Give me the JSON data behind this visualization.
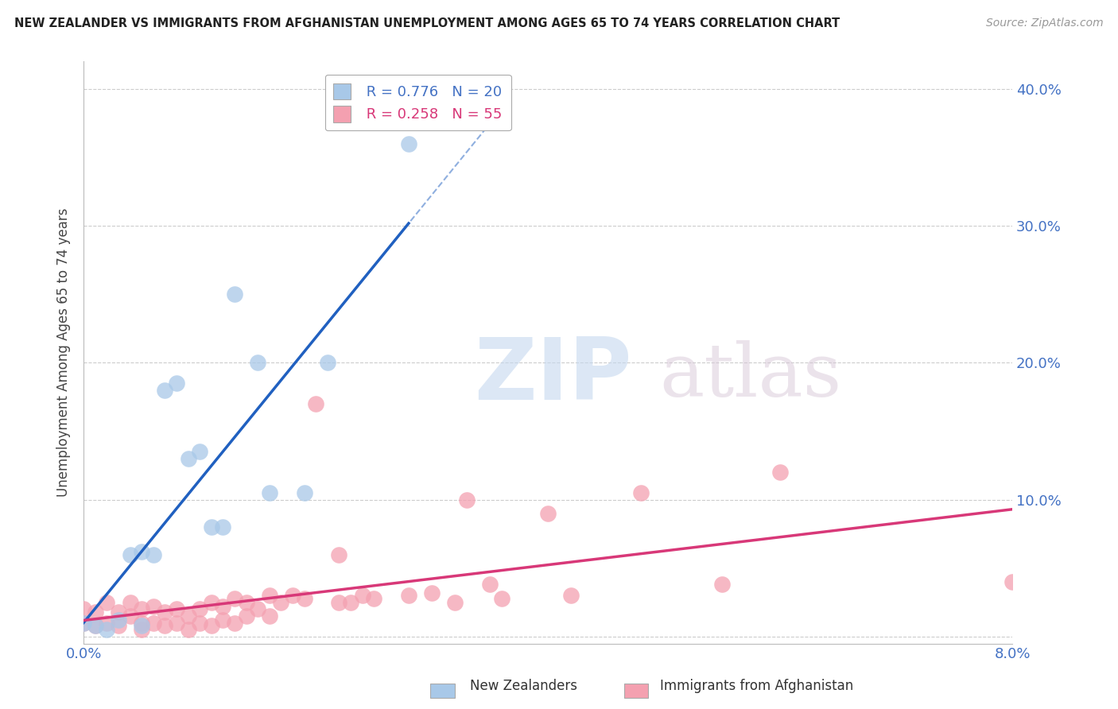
{
  "title": "NEW ZEALANDER VS IMMIGRANTS FROM AFGHANISTAN UNEMPLOYMENT AMONG AGES 65 TO 74 YEARS CORRELATION CHART",
  "source": "Source: ZipAtlas.com",
  "ylabel": "Unemployment Among Ages 65 to 74 years",
  "legend_nz_r": "R = 0.776",
  "legend_nz_n": "N = 20",
  "legend_afg_r": "R = 0.258",
  "legend_afg_n": "N = 55",
  "nz_color": "#a8c8e8",
  "afg_color": "#f4a0b0",
  "nz_line_color": "#2060c0",
  "afg_line_color": "#d83878",
  "watermark_zip": "ZIP",
  "watermark_atlas": "atlas",
  "xmin": 0.0,
  "xmax": 0.08,
  "ymin": -0.005,
  "ymax": 0.42,
  "ytick_values": [
    0.0,
    0.1,
    0.2,
    0.3,
    0.4
  ],
  "ytick_labels": [
    "",
    "10.0%",
    "20.0%",
    "30.0%",
    "40.0%"
  ],
  "xtick_values": [
    0.0,
    0.08
  ],
  "xtick_labels": [
    "0.0%",
    "8.0%"
  ],
  "bg_color": "#ffffff",
  "grid_color": "#cccccc",
  "nz_x": [
    0.0,
    0.001,
    0.002,
    0.003,
    0.004,
    0.005,
    0.005,
    0.006,
    0.007,
    0.008,
    0.009,
    0.01,
    0.011,
    0.012,
    0.013,
    0.015,
    0.016,
    0.019,
    0.021,
    0.028
  ],
  "nz_y": [
    0.01,
    0.008,
    0.005,
    0.012,
    0.06,
    0.008,
    0.062,
    0.06,
    0.18,
    0.185,
    0.13,
    0.135,
    0.08,
    0.08,
    0.25,
    0.2,
    0.105,
    0.105,
    0.2,
    0.36
  ],
  "afg_x": [
    0.0,
    0.0,
    0.001,
    0.001,
    0.002,
    0.002,
    0.003,
    0.003,
    0.004,
    0.004,
    0.005,
    0.005,
    0.005,
    0.006,
    0.006,
    0.007,
    0.007,
    0.008,
    0.008,
    0.009,
    0.009,
    0.01,
    0.01,
    0.011,
    0.011,
    0.012,
    0.012,
    0.013,
    0.013,
    0.014,
    0.014,
    0.015,
    0.016,
    0.016,
    0.017,
    0.018,
    0.019,
    0.02,
    0.022,
    0.022,
    0.023,
    0.024,
    0.025,
    0.028,
    0.03,
    0.032,
    0.033,
    0.035,
    0.036,
    0.04,
    0.042,
    0.048,
    0.055,
    0.06,
    0.08
  ],
  "afg_y": [
    0.01,
    0.02,
    0.008,
    0.018,
    0.01,
    0.025,
    0.008,
    0.018,
    0.015,
    0.025,
    0.005,
    0.01,
    0.02,
    0.01,
    0.022,
    0.008,
    0.018,
    0.01,
    0.02,
    0.005,
    0.015,
    0.01,
    0.02,
    0.008,
    0.025,
    0.012,
    0.022,
    0.01,
    0.028,
    0.015,
    0.025,
    0.02,
    0.03,
    0.015,
    0.025,
    0.03,
    0.028,
    0.17,
    0.025,
    0.06,
    0.025,
    0.03,
    0.028,
    0.03,
    0.032,
    0.025,
    0.1,
    0.038,
    0.028,
    0.09,
    0.03,
    0.105,
    0.038,
    0.12,
    0.04
  ]
}
